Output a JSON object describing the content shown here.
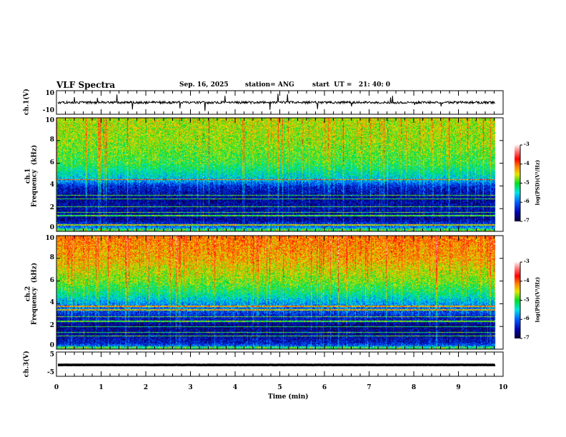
{
  "chart_data": {
    "type": "heatmap",
    "title": "VLF Spectra",
    "date": "Sep. 16, 2025",
    "station": "station= ANG",
    "start": "start  UT =   21: 40: 0",
    "xlabel": "Time  (min)",
    "xlim": [
      0,
      10
    ],
    "xticks": [
      "0",
      "1",
      "2",
      "3",
      "4",
      "5",
      "6",
      "7",
      "8",
      "9",
      "10"
    ],
    "data_end_min": 9.83,
    "panels": [
      {
        "id": "ch1_wave",
        "type": "line",
        "ylabel": "ch.1(V)",
        "ylim": [
          -10,
          10
        ],
        "yticks": [
          "10",
          "-10"
        ],
        "baseline": 0,
        "noise_amp": 1.0
      },
      {
        "id": "ch1_spec",
        "type": "heatmap",
        "ylabel": "ch.1\nFrequency  (kHz)",
        "ylim": [
          0,
          10
        ],
        "yticks": [
          "0",
          "2",
          "4",
          "6",
          "8",
          "10"
        ],
        "log_psd_profile_kHz": [
          [
            0,
            -5.5
          ],
          [
            0.5,
            -6.0
          ],
          [
            1,
            -6.6
          ],
          [
            2,
            -6.5
          ],
          [
            3,
            -6.6
          ],
          [
            4,
            -6.3
          ],
          [
            4.6,
            -5.6
          ],
          [
            6,
            -5.0
          ],
          [
            8,
            -4.7
          ],
          [
            10,
            -4.6
          ]
        ],
        "narrowband_lines_kHz": [
          0.6,
          1.4,
          1.7,
          2.2,
          2.9,
          3.2,
          4.6
        ]
      },
      {
        "id": "ch2_spec",
        "type": "heatmap",
        "ylabel": "ch.2\nFrequency  (kHz)",
        "ylim": [
          0,
          10
        ],
        "yticks": [
          "0",
          "2",
          "4",
          "6",
          "8",
          "10"
        ],
        "log_psd_profile_kHz": [
          [
            0,
            -5.5
          ],
          [
            0.6,
            -6.4
          ],
          [
            1,
            -6.5
          ],
          [
            2,
            -6.7
          ],
          [
            3,
            -6.3
          ],
          [
            4,
            -5.8
          ],
          [
            5,
            -5.2
          ],
          [
            6,
            -4.8
          ],
          [
            8,
            -4.3
          ],
          [
            10,
            -4.1
          ]
        ],
        "narrowband_lines_kHz": [
          1.2,
          1.5,
          2.0,
          2.5,
          2.9,
          3.5,
          3.8
        ]
      },
      {
        "id": "ch3_wave",
        "type": "line",
        "ylabel": "ch.3(V)",
        "ylim": [
          -5,
          5
        ],
        "yticks": [
          "5",
          "-5"
        ],
        "baseline": -0.3,
        "noise_amp": 0.05
      }
    ],
    "colorbar": {
      "label": "log(PSD)(V²/Hz)",
      "range": [
        -7,
        -3
      ],
      "ticks": [
        "-3",
        "-4",
        "-5",
        "-6",
        "-7"
      ]
    }
  }
}
